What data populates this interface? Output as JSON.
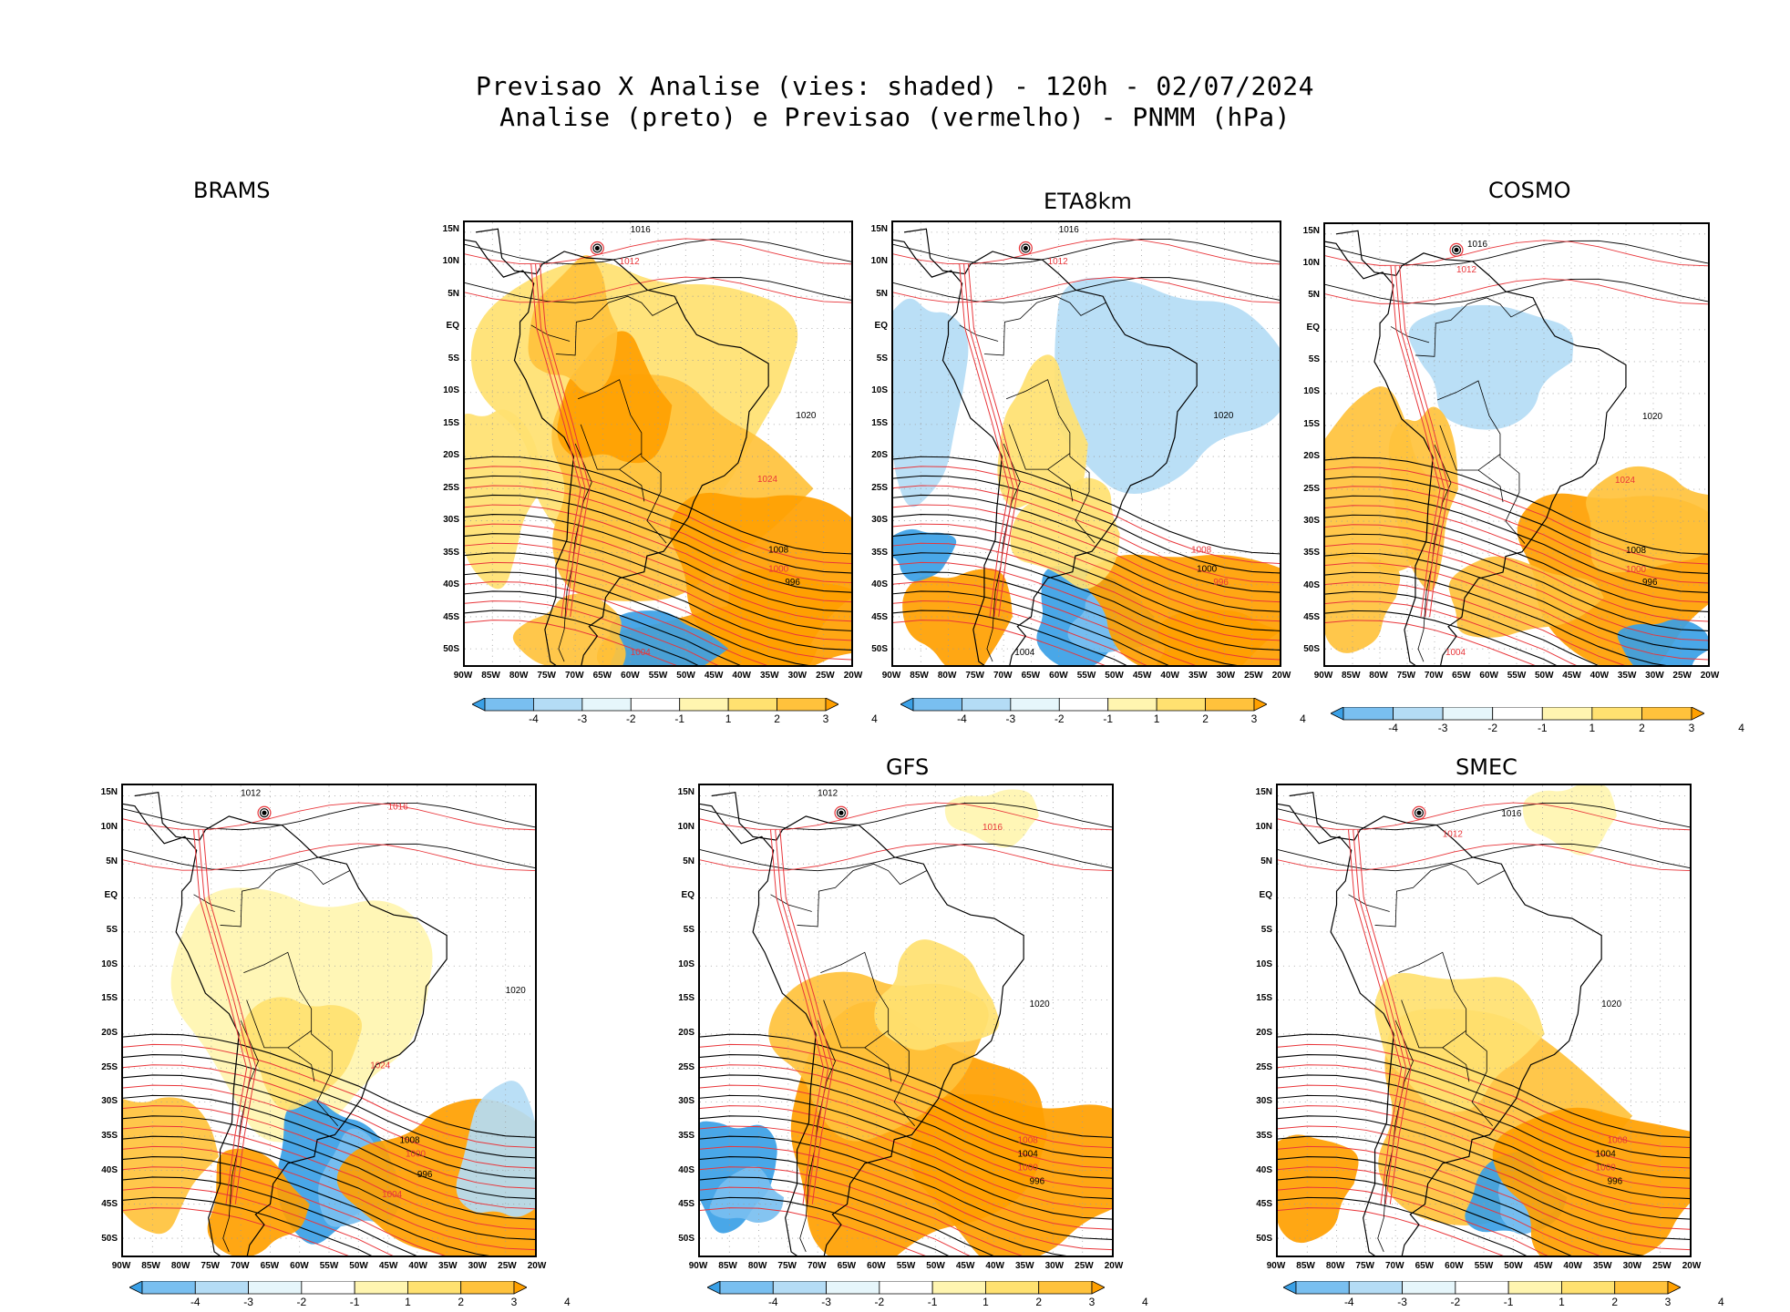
{
  "title": {
    "line1": "Previsao X Analise (vies: shaded) - 120h - 02/07/2024",
    "line2": "Analise (preto) e Previsao (vermelho) - PNMM (hPa)"
  },
  "axes": {
    "lat_labels": [
      "15N",
      "10N",
      "5N",
      "EQ",
      "5S",
      "10S",
      "15S",
      "20S",
      "25S",
      "30S",
      "35S",
      "40S",
      "45S",
      "50S"
    ],
    "lon_labels": [
      "90W",
      "85W",
      "80W",
      "75W",
      "70W",
      "65W",
      "60W",
      "55W",
      "50W",
      "45W",
      "40W",
      "35W",
      "30W",
      "25W",
      "20W"
    ]
  },
  "colorbar": {
    "labels": [
      "-4",
      "-3",
      "-2",
      "-1",
      "1",
      "2",
      "3",
      "4"
    ],
    "colors": [
      "#3aa0e6",
      "#79bff0",
      "#b4dcf5",
      "#e6f6fb",
      "#ffffff",
      "#fff5b0",
      "#ffe170",
      "#ffc23c",
      "#ffa000"
    ]
  },
  "colors": {
    "analysis_contour": "#000000",
    "forecast_contour": "#e8353a",
    "coast": "#000000"
  },
  "panels": [
    {
      "id": "brams-top",
      "label": "BRAMS",
      "isobar_labels": [
        "1016",
        "1012",
        "1020",
        "1024",
        "1008",
        "1000",
        "996",
        "1004"
      ]
    },
    {
      "id": "eta8km",
      "label": "ETA8km",
      "isobar_labels": [
        "1016",
        "1012",
        "1020",
        "1008",
        "1000",
        "996",
        "1004"
      ]
    },
    {
      "id": "cosmo",
      "label": "COSMO",
      "isobar_labels": [
        "1016",
        "1012",
        "1020",
        "1024",
        "1008",
        "1000",
        "996",
        "1004"
      ]
    },
    {
      "id": "brams-bottom",
      "label": "",
      "isobar_labels": [
        "1012",
        "1016",
        "1020",
        "1024",
        "1008",
        "1000",
        "996",
        "1004"
      ]
    },
    {
      "id": "gfs",
      "label": "GFS",
      "isobar_labels": [
        "1012",
        "1016",
        "1020",
        "1008",
        "1004",
        "1000",
        "996"
      ]
    },
    {
      "id": "smec",
      "label": "SMEC",
      "isobar_labels": [
        "1016",
        "1012",
        "1020",
        "1008",
        "1004",
        "1000",
        "996"
      ]
    }
  ]
}
